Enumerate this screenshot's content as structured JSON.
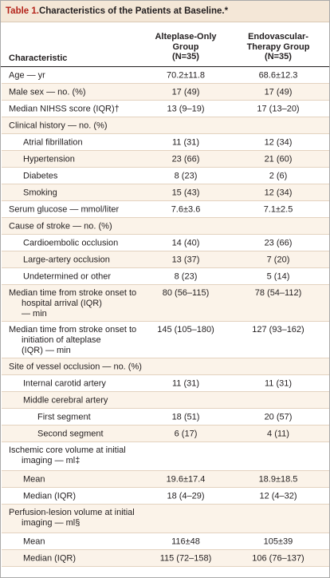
{
  "title": {
    "number": "Table 1.",
    "text": " Characteristics of the Patients at Baseline.*"
  },
  "header": {
    "characteristic": "Characteristic",
    "col1": [
      "Alteplase-Only",
      "Group",
      "(N=35)"
    ],
    "col2": [
      "Endovascular-",
      "Therapy Group",
      "(N=35)"
    ]
  },
  "rows": [
    {
      "label": "Age — yr",
      "v1": "70.2±11.8",
      "v2": "68.6±12.3"
    },
    {
      "label": "Male sex — no. (%)",
      "v1": "17 (49)",
      "v2": "17 (49)"
    },
    {
      "label": "Median NIHSS score (IQR)†",
      "v1": "13 (9–19)",
      "v2": "17 (13–20)"
    },
    {
      "label": "Clinical history — no. (%)",
      "v1": "",
      "v2": ""
    },
    {
      "label": "Atrial fibrillation",
      "v1": "11 (31)",
      "v2": "12 (34)"
    },
    {
      "label": "Hypertension",
      "v1": "23 (66)",
      "v2": "21 (60)"
    },
    {
      "label": "Diabetes",
      "v1": "8 (23)",
      "v2": "2 (6)"
    },
    {
      "label": "Smoking",
      "v1": "15 (43)",
      "v2": "12 (34)"
    },
    {
      "label": "Serum glucose — mmol/liter",
      "v1": "7.6±3.6",
      "v2": "7.1±2.5"
    },
    {
      "label": "Cause of stroke — no. (%)",
      "v1": "",
      "v2": ""
    },
    {
      "label": "Cardioembolic occlusion",
      "v1": "14 (40)",
      "v2": "23 (66)"
    },
    {
      "label": "Large-artery occlusion",
      "v1": "13 (37)",
      "v2": "7 (20)"
    },
    {
      "label": "Undetermined or other",
      "v1": "8 (23)",
      "v2": "5 (14)"
    },
    {
      "label": [
        "Median time from stroke onset to",
        "hospital arrival (IQR)",
        "— min"
      ],
      "v1": "80 (56–115)",
      "v2": "78 (54–112)"
    },
    {
      "label": [
        "Median time from stroke onset to",
        "initiation of alteplase",
        "(IQR) — min"
      ],
      "v1": "145 (105–180)",
      "v2": "127 (93–162)"
    },
    {
      "label": "Site of vessel occlusion — no. (%)",
      "v1": "",
      "v2": ""
    },
    {
      "label": "Internal carotid artery",
      "v1": "11 (31)",
      "v2": "11 (31)"
    },
    {
      "label": "Middle cerebral artery",
      "v1": "",
      "v2": ""
    },
    {
      "label": "First segment",
      "v1": "18 (51)",
      "v2": "20 (57)"
    },
    {
      "label": "Second segment",
      "v1": "6 (17)",
      "v2": "4 (11)"
    },
    {
      "label": [
        "Ischemic core volume at initial",
        "imaging — ml‡"
      ],
      "v1": "",
      "v2": ""
    },
    {
      "label": "Mean",
      "v1": "19.6±17.4",
      "v2": "18.9±18.5"
    },
    {
      "label": "Median (IQR)",
      "v1": "18 (4–29)",
      "v2": "12 (4–32)"
    },
    {
      "label": [
        "Perfusion-lesion volume at initial",
        "imaging — ml§"
      ],
      "v1": "",
      "v2": ""
    },
    {
      "label": "Mean",
      "v1": "116±48",
      "v2": "105±39"
    },
    {
      "label": "Median (IQR)",
      "v1": "115 (72–158)",
      "v2": "106 (76–137)"
    }
  ]
}
